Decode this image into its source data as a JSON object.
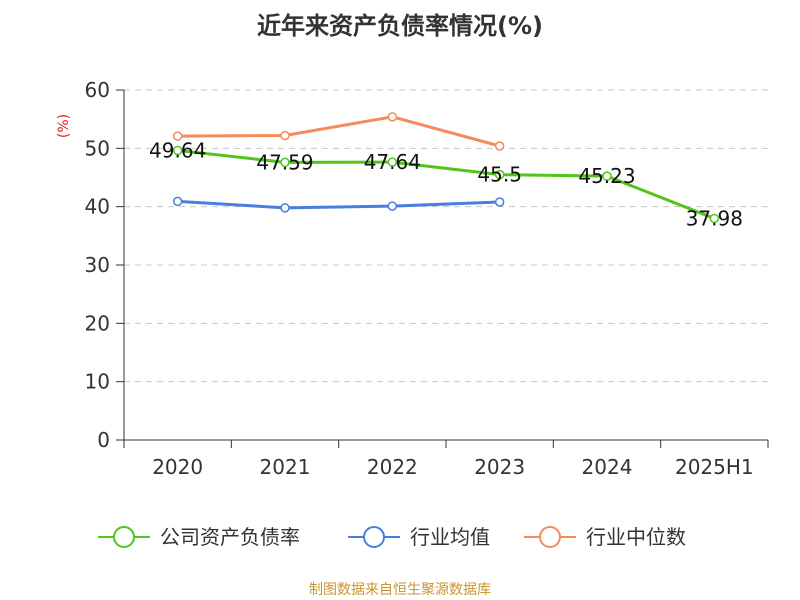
{
  "chart_data": {
    "type": "line",
    "title": "近年来资产负债率情况(%)",
    "ylabel": "(%)",
    "xlabel": "",
    "categories": [
      "2020",
      "2021",
      "2022",
      "2023",
      "2024",
      "2025H1"
    ],
    "ylim": [
      0,
      60
    ],
    "yticks": [
      0,
      10,
      20,
      30,
      40,
      50,
      60
    ],
    "grid": true,
    "legend_position": "bottom",
    "series": [
      {
        "name": "公司资产负债率",
        "color": "#52c41a",
        "values": [
          49.64,
          47.59,
          47.64,
          45.5,
          45.23,
          37.98
        ],
        "data_labels": [
          "49.64",
          "47.59",
          "47.64",
          "45.5",
          "45.23",
          "37.98"
        ]
      },
      {
        "name": "行业均值",
        "color": "#4a7de0",
        "values": [
          40.9,
          39.8,
          40.1,
          40.8,
          null,
          null
        ]
      },
      {
        "name": "行业中位数",
        "color": "#f58a5a",
        "values": [
          52.1,
          52.2,
          55.4,
          50.4,
          null,
          null
        ]
      }
    ],
    "source": "制图数据来自恒生聚源数据库"
  }
}
